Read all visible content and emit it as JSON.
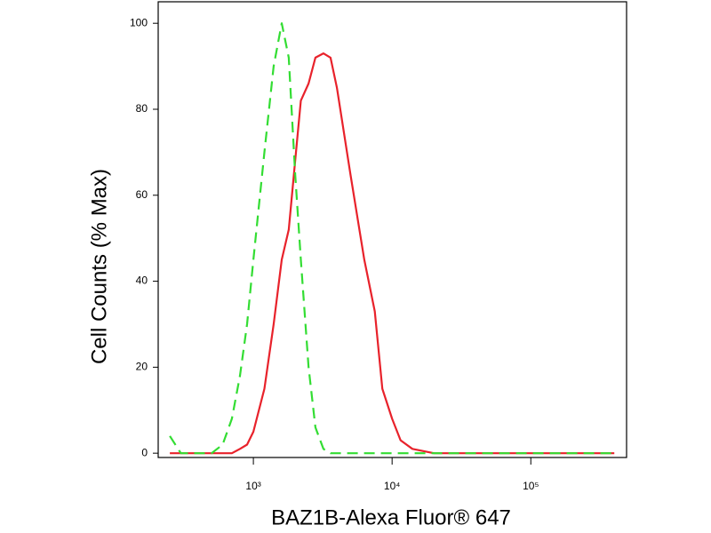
{
  "chart_data": {
    "type": "line",
    "x_label": "BAZ1B-Alexa Fluor® 647",
    "y_label": "Cell Counts (% Max)",
    "x": [
      250,
      300,
      400,
      500,
      600,
      700,
      800,
      900,
      1000,
      1200,
      1400,
      1600,
      1800,
      2000,
      2200,
      2500,
      2800,
      3200,
      3600,
      4000,
      5000,
      6300,
      7500,
      8500,
      10000,
      11500,
      14000,
      20000,
      50000,
      100000,
      200000,
      400000
    ],
    "series": [
      {
        "color": "#e8222b",
        "dashed": false,
        "values": [
          0,
          0,
          0,
          0,
          0,
          0,
          1,
          2,
          5,
          15,
          30,
          45,
          52,
          68,
          82,
          86,
          92,
          93,
          92,
          85,
          65,
          45,
          33,
          15,
          8,
          3,
          1,
          0,
          0,
          0,
          0,
          0
        ]
      },
      {
        "color": "#33dd33",
        "dashed": true,
        "values": [
          4,
          0,
          0,
          0,
          2,
          8,
          18,
          30,
          45,
          70,
          90,
          100,
          92,
          65,
          45,
          20,
          6,
          1,
          0,
          0,
          0,
          0,
          0,
          0,
          0,
          0,
          0,
          0,
          0,
          0,
          0,
          0
        ]
      }
    ],
    "xscale": "log",
    "xlim": [
      206,
      490000
    ],
    "xticks": [
      {
        "value": 1000,
        "label": "10³"
      },
      {
        "value": 10000,
        "label": "10⁴"
      },
      {
        "value": 100000,
        "label": "10⁵"
      }
    ],
    "ylim": [
      -1,
      105
    ],
    "yticks": [
      0,
      20,
      40,
      60,
      80,
      100
    ],
    "grid": false
  }
}
